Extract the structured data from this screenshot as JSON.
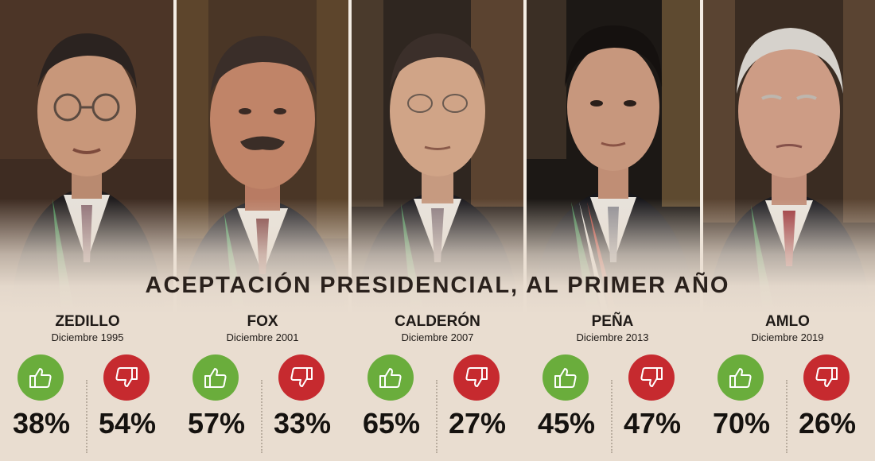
{
  "headline": "ACEPTACIÓN PRESIDENCIAL, AL PRIMER AÑO",
  "colors": {
    "approve": "#6aad3c",
    "disapprove": "#c62a2f",
    "background": "#e9ddd0"
  },
  "icons": {
    "approve": "thumbs-up-icon",
    "disapprove": "thumbs-down-icon"
  },
  "presidents": [
    {
      "name": "ZEDILLO",
      "date": "Diciembre 1995",
      "approve": "38%",
      "disapprove": "54%"
    },
    {
      "name": "FOX",
      "date": "Diciembre 2001",
      "approve": "57%",
      "disapprove": "33%"
    },
    {
      "name": "CALDERÓN",
      "date": "Diciembre 2007",
      "approve": "65%",
      "disapprove": "27%"
    },
    {
      "name": "PEÑA",
      "date": "Diciembre 2013",
      "approve": "45%",
      "disapprove": "47%"
    },
    {
      "name": "AMLO",
      "date": "Diciembre 2019",
      "approve": "70%",
      "disapprove": "26%"
    }
  ]
}
